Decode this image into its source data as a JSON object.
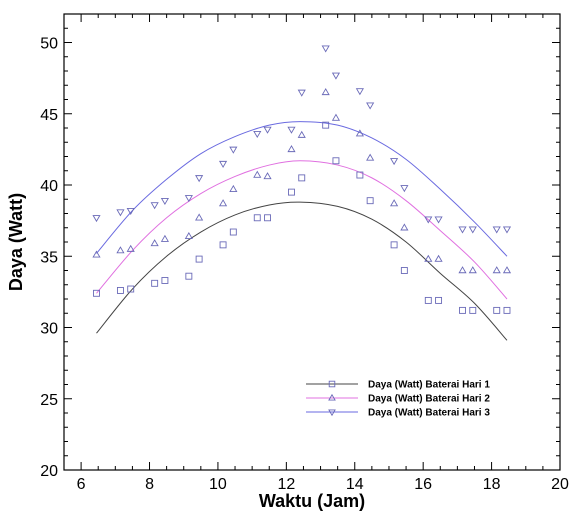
{
  "chart_data": {
    "type": "scatter",
    "title": "",
    "xlabel": "Waktu (Jam)",
    "ylabel": "Daya (Watt)",
    "xlim": [
      5.5,
      20
    ],
    "ylim": [
      20,
      52
    ],
    "xticks": [
      6,
      8,
      10,
      12,
      14,
      16,
      18,
      20
    ],
    "yticks": [
      20,
      25,
      30,
      35,
      40,
      45,
      50
    ],
    "grid": false,
    "legend_position": "bottom-right",
    "series": [
      {
        "name": "Daya (Watt) Baterai Hari 1",
        "marker": "square",
        "color": "#6a6ab8",
        "line_color": "#444444",
        "points": [
          [
            6.45,
            32.4
          ],
          [
            7.15,
            32.6
          ],
          [
            7.45,
            32.7
          ],
          [
            8.15,
            33.1
          ],
          [
            8.45,
            33.3
          ],
          [
            9.15,
            33.6
          ],
          [
            9.45,
            34.8
          ],
          [
            10.15,
            35.8
          ],
          [
            10.45,
            36.7
          ],
          [
            11.15,
            37.7
          ],
          [
            11.45,
            37.7
          ],
          [
            12.15,
            39.5
          ],
          [
            12.45,
            40.5
          ],
          [
            13.15,
            44.2
          ],
          [
            13.45,
            41.7
          ],
          [
            14.15,
            40.7
          ],
          [
            14.45,
            38.9
          ],
          [
            15.15,
            35.8
          ],
          [
            15.45,
            34.0
          ],
          [
            16.15,
            31.9
          ],
          [
            16.45,
            31.9
          ],
          [
            17.15,
            31.2
          ],
          [
            17.45,
            31.2
          ],
          [
            18.15,
            31.2
          ],
          [
            18.45,
            31.2
          ]
        ],
        "fit_points": [
          [
            6.45,
            29.6
          ],
          [
            7.5,
            32.7
          ],
          [
            8.5,
            35.0
          ],
          [
            9.5,
            36.7
          ],
          [
            10.5,
            37.9
          ],
          [
            11.5,
            38.6
          ],
          [
            12.4,
            38.8
          ],
          [
            13.5,
            38.5
          ],
          [
            14.5,
            37.6
          ],
          [
            15.5,
            36.0
          ],
          [
            16.5,
            33.8
          ],
          [
            17.5,
            31.7
          ],
          [
            18.45,
            29.1
          ]
        ]
      },
      {
        "name": "Daya (Watt) Baterai Hari 2",
        "marker": "triangle-up",
        "color": "#6a6ab8",
        "line_color": "#e070e0",
        "points": [
          [
            6.45,
            35.1
          ],
          [
            7.15,
            35.4
          ],
          [
            7.45,
            35.5
          ],
          [
            8.15,
            35.9
          ],
          [
            8.45,
            36.2
          ],
          [
            9.15,
            36.4
          ],
          [
            9.45,
            37.7
          ],
          [
            10.15,
            38.7
          ],
          [
            10.45,
            39.7
          ],
          [
            11.15,
            40.7
          ],
          [
            11.45,
            40.6
          ],
          [
            12.15,
            42.5
          ],
          [
            12.45,
            43.5
          ],
          [
            13.15,
            46.5
          ],
          [
            13.45,
            44.7
          ],
          [
            14.15,
            43.6
          ],
          [
            14.45,
            41.9
          ],
          [
            15.15,
            38.7
          ],
          [
            15.45,
            37.0
          ],
          [
            16.15,
            34.8
          ],
          [
            16.45,
            34.8
          ],
          [
            17.15,
            34.0
          ],
          [
            17.45,
            34.0
          ],
          [
            18.15,
            34.0
          ],
          [
            18.45,
            34.0
          ]
        ],
        "fit_points": [
          [
            6.45,
            32.4
          ],
          [
            7.5,
            35.4
          ],
          [
            8.5,
            37.7
          ],
          [
            9.5,
            39.4
          ],
          [
            10.5,
            40.6
          ],
          [
            11.5,
            41.4
          ],
          [
            12.4,
            41.7
          ],
          [
            13.5,
            41.4
          ],
          [
            14.5,
            40.5
          ],
          [
            15.5,
            38.9
          ],
          [
            16.5,
            36.8
          ],
          [
            17.5,
            34.6
          ],
          [
            18.45,
            32.0
          ]
        ]
      },
      {
        "name": "Daya (Watt) Baterai Hari 3",
        "marker": "triangle-down",
        "color": "#6a6ab8",
        "line_color": "#6a6ae0",
        "points": [
          [
            6.45,
            37.7
          ],
          [
            7.15,
            38.1
          ],
          [
            7.45,
            38.2
          ],
          [
            8.15,
            38.6
          ],
          [
            8.45,
            38.9
          ],
          [
            9.15,
            39.1
          ],
          [
            9.45,
            40.5
          ],
          [
            10.15,
            41.5
          ],
          [
            10.45,
            42.5
          ],
          [
            11.15,
            43.6
          ],
          [
            11.45,
            43.9
          ],
          [
            12.15,
            43.9
          ],
          [
            12.45,
            46.5
          ],
          [
            13.15,
            49.6
          ],
          [
            13.45,
            47.7
          ],
          [
            14.15,
            46.6
          ],
          [
            14.45,
            45.6
          ],
          [
            15.15,
            41.7
          ],
          [
            15.45,
            39.8
          ],
          [
            16.15,
            37.6
          ],
          [
            16.45,
            37.6
          ],
          [
            17.15,
            36.9
          ],
          [
            17.45,
            36.9
          ],
          [
            18.15,
            36.9
          ],
          [
            18.45,
            36.9
          ]
        ],
        "fit_points": [
          [
            6.45,
            35.2
          ],
          [
            7.5,
            38.2
          ],
          [
            8.5,
            40.4
          ],
          [
            9.5,
            42.2
          ],
          [
            10.5,
            43.4
          ],
          [
            11.5,
            44.2
          ],
          [
            12.4,
            44.45
          ],
          [
            13.5,
            44.2
          ],
          [
            14.5,
            43.3
          ],
          [
            15.5,
            41.8
          ],
          [
            16.5,
            39.7
          ],
          [
            17.5,
            37.4
          ],
          [
            18.45,
            35.0
          ]
        ]
      }
    ]
  }
}
